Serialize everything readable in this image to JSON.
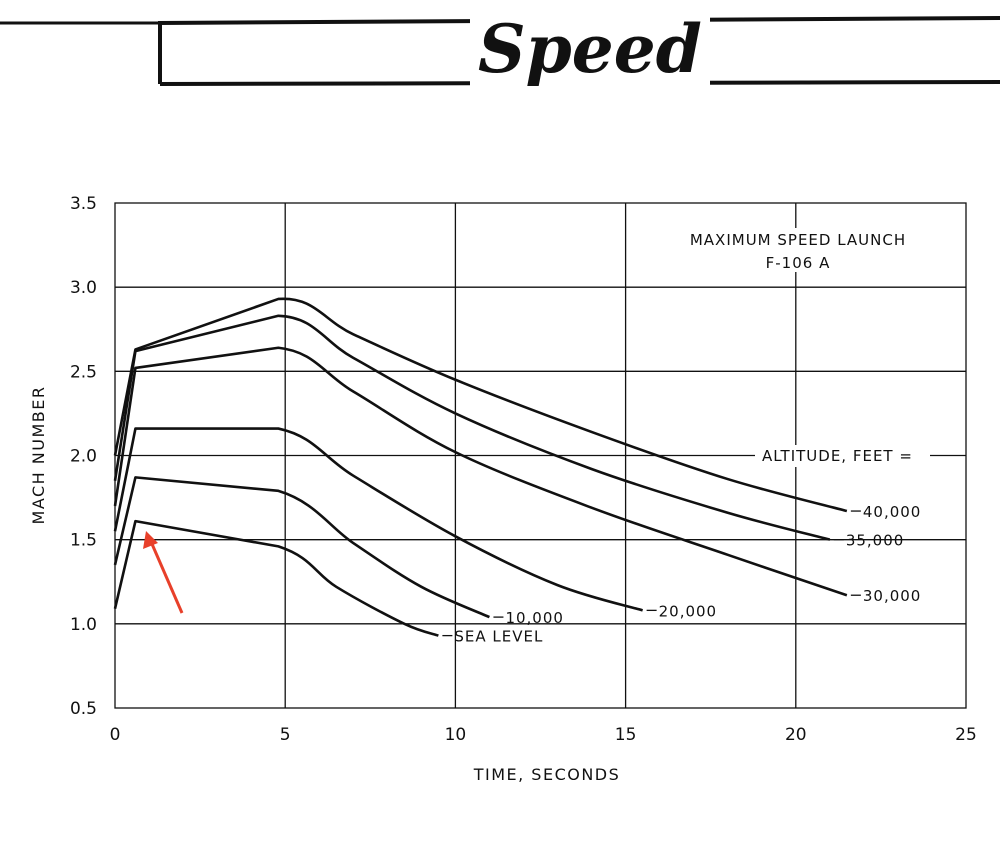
{
  "header": {
    "title": "Speed"
  },
  "chart_data": {
    "type": "line",
    "title": "MAXIMUM SPEED LAUNCH",
    "subtitle": "F-106 A",
    "xlabel": "TIME, SECONDS",
    "ylabel": "MACH NUMBER",
    "xlim": [
      0,
      25
    ],
    "ylim": [
      0.5,
      3.5
    ],
    "xticks": [
      "0",
      "5",
      "10",
      "15",
      "20",
      "25"
    ],
    "yticks": [
      "0.5",
      "1.0",
      "1.5",
      "2.0",
      "2.5",
      "3.0",
      "3.5"
    ],
    "grid": true,
    "legend_title": "ALTITUDE, FEET =",
    "series": [
      {
        "name": "40,000",
        "x": [
          0,
          0.6,
          4.8,
          7,
          10,
          14,
          18,
          21.5
        ],
        "y": [
          2.0,
          2.63,
          2.93,
          2.72,
          2.45,
          2.14,
          1.86,
          1.67
        ]
      },
      {
        "name": "35,000",
        "x": [
          0,
          0.6,
          4.8,
          7,
          10,
          14,
          18,
          21
        ],
        "y": [
          1.85,
          2.62,
          2.83,
          2.58,
          2.25,
          1.92,
          1.66,
          1.5
        ]
      },
      {
        "name": "30,000",
        "x": [
          0,
          0.6,
          4.8,
          7,
          10,
          14,
          18,
          21.5
        ],
        "y": [
          1.7,
          2.52,
          2.64,
          2.38,
          2.02,
          1.69,
          1.41,
          1.17
        ]
      },
      {
        "name": "20,000",
        "x": [
          0,
          0.6,
          4.8,
          7,
          10,
          13,
          15.5
        ],
        "y": [
          1.55,
          2.16,
          2.16,
          1.88,
          1.52,
          1.23,
          1.08
        ]
      },
      {
        "name": "10,000",
        "x": [
          0,
          0.6,
          4.8,
          7,
          9,
          11
        ],
        "y": [
          1.35,
          1.87,
          1.79,
          1.48,
          1.22,
          1.04
        ]
      },
      {
        "name": "SEA LEVEL",
        "x": [
          0,
          0.6,
          4.8,
          6.5,
          8.5,
          9.5
        ],
        "y": [
          1.09,
          1.61,
          1.46,
          1.22,
          1.0,
          0.93
        ]
      }
    ]
  },
  "annotation": {
    "arrow_color": "#e8402a"
  }
}
